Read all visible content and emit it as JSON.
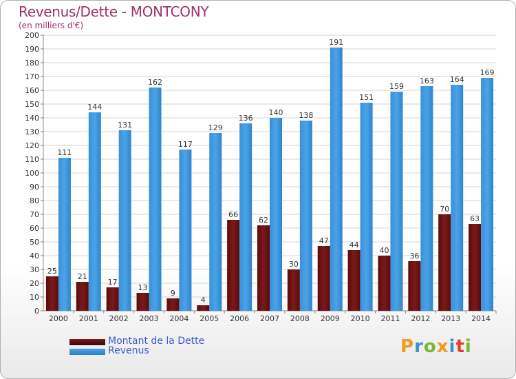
{
  "header": {
    "title": "Revenus/Dette - MONTCONY",
    "subtitle": "(en milliers d'€)"
  },
  "legend": {
    "items": [
      {
        "label": "Montant de la Dette",
        "color": "#7a1a1a"
      },
      {
        "label": "Revenus",
        "color": "#4aa3e8"
      }
    ]
  },
  "logo": {
    "text": "Proxiti"
  },
  "colors": {
    "dette": "#7a1a1a",
    "revenus": "#4aa3e8",
    "grid": "#d4d4d4",
    "axis_text": "#333333",
    "title": "#a0306a"
  },
  "chart_data": {
    "type": "bar",
    "title": "Revenus/Dette - MONTCONY",
    "subtitle": "(en milliers d'€)",
    "categories": [
      "2000",
      "2001",
      "2002",
      "2003",
      "2004",
      "2005",
      "2006",
      "2007",
      "2008",
      "2009",
      "2010",
      "2011",
      "2012",
      "2013",
      "2014"
    ],
    "series": [
      {
        "name": "Montant de la Dette",
        "values": [
          25,
          21,
          17,
          13,
          9,
          4,
          66,
          62,
          30,
          47,
          44,
          40,
          36,
          70,
          63
        ]
      },
      {
        "name": "Revenus",
        "values": [
          111,
          144,
          131,
          162,
          117,
          129,
          136,
          140,
          138,
          191,
          151,
          159,
          163,
          164,
          169
        ]
      }
    ],
    "ylim": [
      0,
      200
    ],
    "ytick_step": 10,
    "grid": true,
    "legend_position": "bottom-left"
  }
}
